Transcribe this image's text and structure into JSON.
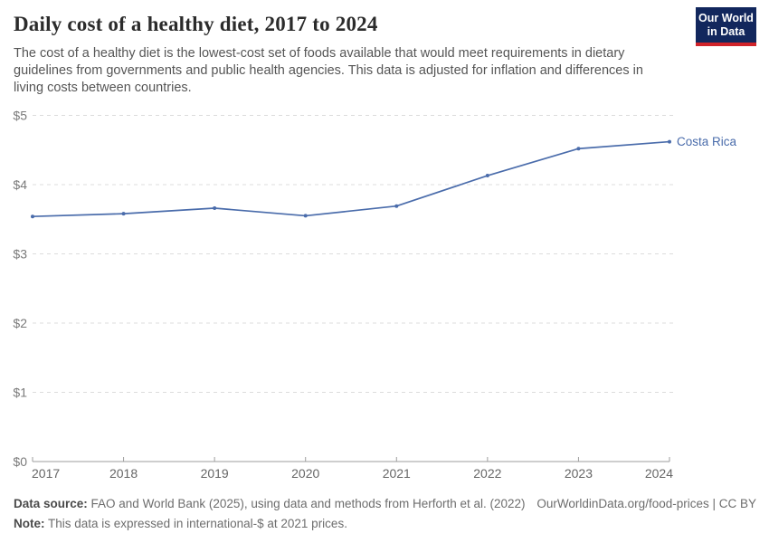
{
  "header": {
    "title": "Daily cost of a healthy diet, 2017 to 2024",
    "subtitle": "The cost of a healthy diet is the lowest-cost set of foods available that would meet requirements in dietary guidelines from governments and public health agencies. This data is adjusted for inflation and differences in living costs between countries.",
    "logo": {
      "line1": "Our World",
      "line2": "in Data"
    }
  },
  "chart_data": {
    "type": "line",
    "title": "Daily cost of a healthy diet, 2017 to 2024",
    "x": [
      2017,
      2018,
      2019,
      2020,
      2021,
      2022,
      2023,
      2024
    ],
    "series": [
      {
        "name": "Costa Rica",
        "values": [
          3.54,
          3.58,
          3.66,
          3.55,
          3.69,
          4.13,
          4.52,
          4.62
        ]
      }
    ],
    "xlabel": "",
    "ylabel": "",
    "ylim": [
      0,
      5
    ],
    "y_ticks": [
      0,
      1,
      2,
      3,
      4,
      5
    ],
    "y_tick_labels": [
      "$0",
      "$1",
      "$2",
      "$3",
      "$4",
      "$5"
    ],
    "grid": true,
    "grid_style": "dashed horizontal",
    "legend": "end-of-line entity label"
  },
  "footer": {
    "data_source_label": "Data source:",
    "data_source_text": " FAO and World Bank (2025), using data and methods from Herforth et al. (2022)",
    "link_text": "OurWorldinData.org/food-prices | CC BY",
    "note_label": "Note:",
    "note_text": " This data is expressed in international-$ at 2021 prices."
  },
  "colors": {
    "line": "#4a6cab",
    "grid": "#dcdcdc",
    "axis": "#9e9e9e",
    "logo_bg": "#12275d",
    "logo_accent": "#d0232a",
    "title_text": "#2b2b2b",
    "subtitle_text": "#555555"
  }
}
